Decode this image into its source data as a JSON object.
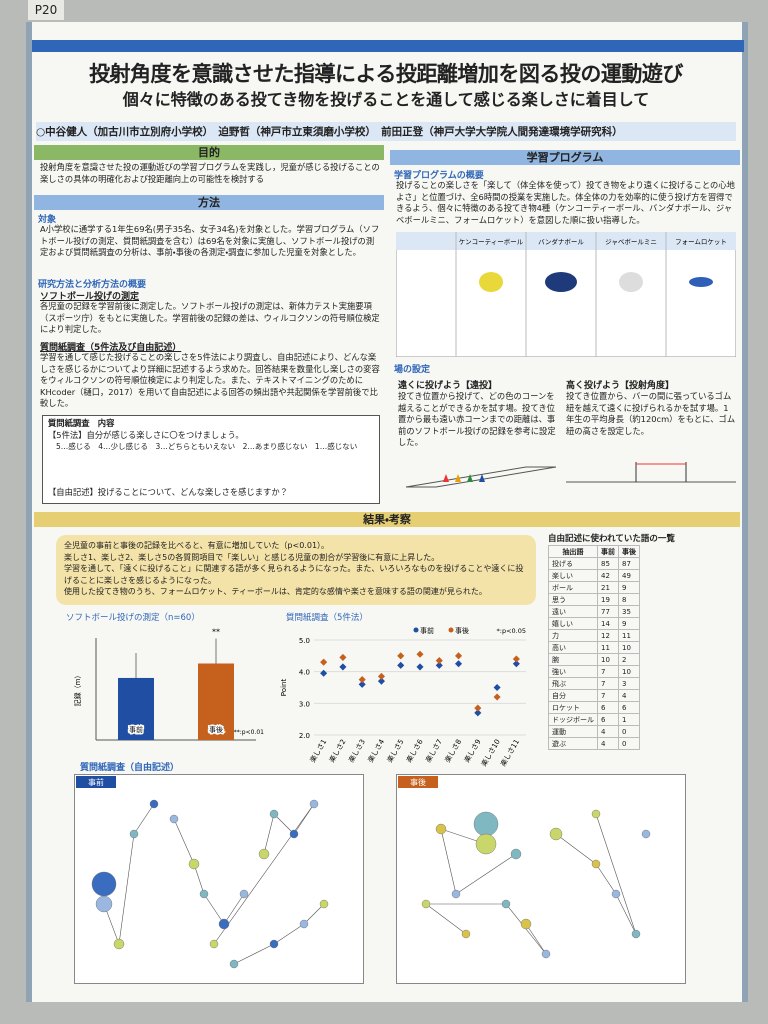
{
  "poster_number": "P20",
  "header": {
    "title": "投射角度を意識させた指導による投距離増加を図る投の運動遊び",
    "subtitle": "個々に特徴のある投てき物を投げることを通して感じる楽しさに着目して",
    "authors": "○中谷健人（加古川市立別府小学校）　迫野哲（神戸市立東須磨小学校）　前田正登（神戸大学大学院人間発達環境学研究科）"
  },
  "purpose": {
    "heading": "目的",
    "text": "投射角度を意識させた投の運動遊びの学習プログラムを実践し，児童が感じる投げることの楽しさの具体の明確化および投距離向上の可能性を検討する"
  },
  "method": {
    "heading": "方法",
    "subject_heading": "対象",
    "subject_text": "A小学校に通学する1年生69名(男子35名、女子34名)を対象とした。学習プログラム（ソフトボール投げの測定、質問紙調査を含む）は69名を対象に実施し、ソフトボール投げの測定および質問紙調査の分析は、事前・事後の各測定・調査に参加した児童を対象とした。",
    "analysis_heading": "研究方法と分析方法の概要",
    "softball_heading": "ソフトボール投げの測定",
    "softball_text": "各児童の記録を学習前後に測定した。ソフトボール投げの測定は、新体力テスト実施要項（スポーツ庁）をもとに実施した。学習前後の記録の差は、ウィルコクソンの符号順位検定により判定した。",
    "survey_heading": "質問紙調査（5件法及び自由記述）",
    "survey_text": "学習を通して感じた投げることの楽しさを5件法により調査し、自由記述により、どんな楽しさを感じるかについてより詳細に記述するよう求めた。回答結果を数量化し楽しさの変容をウィルコクソンの符号順位検定により判定した。また、テキストマイニングのためにKHcoder（樋口，2017）を用いて自由記述による回答の頻出語や共起関係を学習前後で比較した。",
    "form_title": "質問紙調査　内容",
    "form_q1": "【5件法】自分が感じる楽しさに〇をつけましょう。",
    "form_scale": "5…感じる　4…少し感じる　3…どちらともいえない　2…あまり感じない　1…感じない",
    "form_q2": "【自由記述】投げることについて、どんな楽しさを感じますか？"
  },
  "program": {
    "heading": "学習プログラム",
    "overview_heading": "学習プログラムの概要",
    "overview_text": "投げることの楽しさを「楽して（体全体を使って）投てき物をより遠くに投げることの心地よさ」と位置づけ、全6時間の授業を実施した。体全体の力を効率的に使う投げ方を習得できるよう、個々に特徴のある投てき物4種（ケンコーティーボール、バンダナボール、ジャベボールミニ、フォームロケット）を意図した順に扱い指導した。",
    "objects": [
      "ケンコーティーボール",
      "バンダナボール",
      "ジャベボールミニ",
      "フォームロケット"
    ],
    "venue_heading": "場の設定",
    "far_heading": "遠くに投げよう【遠投】",
    "far_text": "投てき位置から投げて、どの色のコーンを越えることができるかを試す場。投てき位置から最も遠い赤コーンまでの距離は、事前のソフトボール投げの記録を参考に設定した。",
    "high_heading": "高く投げよう【投射角度】",
    "high_text": "投てき位置から、バーの間に張っているゴム紐を越えて遠くに投げられるかを試す場。1年生の平均身長（約120cm）をもとに、ゴム紐の高さを設定した。"
  },
  "results": {
    "heading": "結果・考察",
    "points": [
      "全児童の事前と事後の記録を比べると、有意に増加していた（p<0.01）。",
      "楽しさ1、楽しさ2、楽しさ5の各質問項目で「楽しい」と感じる児童の割合が学習後に有意に上昇した。",
      "学習を通して、「遠くに投げること」に関連する語が多く見られるようになった。また、いろいろなものを投げることや遠くに投げることに楽しさを感じるようになった。",
      "使用した投てき物のうち、フォームロケット、ティーボールは、肯定的な感情や楽さを意味する語の関連が見られた。"
    ]
  },
  "softball_chart": {
    "type": "bar",
    "title": "ソフトボール投げの測定（n=60）",
    "y_label": "記録（m）",
    "categories": [
      "事前",
      "事後"
    ],
    "values": [
      7.3,
      9.0
    ],
    "color": "#1f4ea3",
    "colors": [
      "#1f4ea3",
      "#c5611d"
    ],
    "ylim": [
      0,
      12
    ],
    "significance": "**",
    "note": "**:p<0.01"
  },
  "survey_chart": {
    "type": "scatter",
    "title": "質問紙調査（5件法）",
    "y_label": "Point",
    "categories": [
      "楽しさ1",
      "楽しさ2",
      "楽しさ3",
      "楽しさ4",
      "楽しさ5",
      "楽しさ6",
      "楽しさ7",
      "楽しさ8",
      "楽しさ9",
      "楽しさ10",
      "楽しさ11"
    ],
    "series": [
      {
        "name": "事前",
        "color": "#1f4ea3",
        "values": [
          3.95,
          4.15,
          3.6,
          3.7,
          4.2,
          4.15,
          4.2,
          4.25,
          2.7,
          3.5,
          4.25
        ]
      },
      {
        "name": "事後",
        "color": "#c5611d",
        "values": [
          4.3,
          4.45,
          3.75,
          3.85,
          4.5,
          4.55,
          4.35,
          4.5,
          2.85,
          3.2,
          4.4
        ]
      }
    ],
    "ylim": [
      2,
      5
    ],
    "yticks": [
      {
        "value": 2,
        "label": "2.0"
      },
      {
        "value": 3,
        "label": "3.0"
      },
      {
        "value": 4,
        "label": "4.0"
      },
      {
        "value": 5,
        "label": "5.0"
      }
    ],
    "note": "*:p<0.05"
  },
  "word_table": {
    "title": "自由記述に使われていた語の一覧",
    "headers": [
      "抽出語",
      "事前",
      "事後"
    ],
    "rows": [
      [
        "投げる",
        "85",
        "87"
      ],
      [
        "楽しい",
        "42",
        "49"
      ],
      [
        "ボール",
        "21",
        "9"
      ],
      [
        "思う",
        "19",
        "8"
      ],
      [
        "遠い",
        "77",
        "35"
      ],
      [
        "嬉しい",
        "14",
        "9"
      ],
      [
        "力",
        "12",
        "11"
      ],
      [
        "高い",
        "11",
        "10"
      ],
      [
        "腕",
        "10",
        "2"
      ],
      [
        "強い",
        "7",
        "10"
      ],
      [
        "飛ぶ",
        "7",
        "3"
      ],
      [
        "自分",
        "7",
        "4"
      ],
      [
        "ロケット",
        "6",
        "6"
      ],
      [
        "ドッジボール",
        "6",
        "1"
      ],
      [
        "運動",
        "4",
        "0"
      ],
      [
        "遊ぶ",
        "4",
        "0"
      ]
    ]
  },
  "network": {
    "title": "質問紙調査（自由記述）",
    "pre": "事前",
    "post": "事後"
  }
}
